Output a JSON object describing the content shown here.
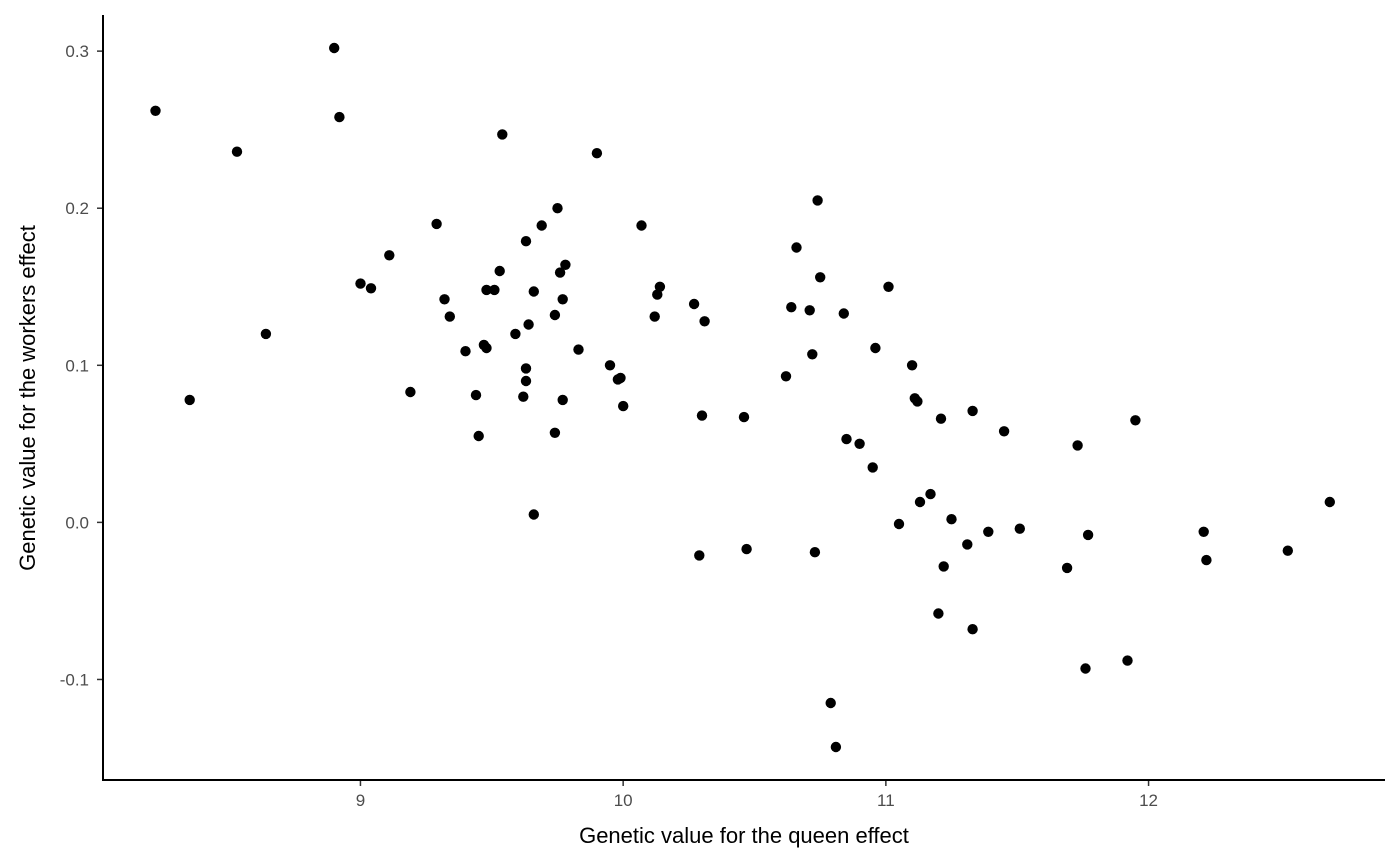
{
  "chart_data": {
    "type": "scatter",
    "title": "",
    "xlabel": "Genetic value for the queen effect",
    "ylabel": "Genetic value for the workers effect",
    "xlim": [
      8.02,
      12.9
    ],
    "ylim": [
      -0.164,
      0.323
    ],
    "xticks": [
      9,
      10,
      11,
      12
    ],
    "xtick_labels": [
      "9",
      "10",
      "11",
      "12"
    ],
    "yticks": [
      -0.1,
      0.0,
      0.1,
      0.2,
      0.3
    ],
    "ytick_labels": [
      "-0.1",
      "0.0",
      "0.1",
      "0.2",
      "0.3"
    ],
    "grid": false,
    "legend": "none",
    "point_color": "#000000",
    "points": [
      {
        "x": 8.22,
        "y": 0.262
      },
      {
        "x": 8.35,
        "y": 0.078
      },
      {
        "x": 8.53,
        "y": 0.236
      },
      {
        "x": 8.64,
        "y": 0.12
      },
      {
        "x": 8.9,
        "y": 0.302
      },
      {
        "x": 8.92,
        "y": 0.258
      },
      {
        "x": 9.0,
        "y": 0.152
      },
      {
        "x": 9.04,
        "y": 0.149
      },
      {
        "x": 9.11,
        "y": 0.17
      },
      {
        "x": 9.19,
        "y": 0.083
      },
      {
        "x": 9.29,
        "y": 0.19
      },
      {
        "x": 9.32,
        "y": 0.142
      },
      {
        "x": 9.34,
        "y": 0.131
      },
      {
        "x": 9.4,
        "y": 0.109
      },
      {
        "x": 9.44,
        "y": 0.081
      },
      {
        "x": 9.45,
        "y": 0.055
      },
      {
        "x": 9.47,
        "y": 0.113
      },
      {
        "x": 9.48,
        "y": 0.111
      },
      {
        "x": 9.48,
        "y": 0.148
      },
      {
        "x": 9.51,
        "y": 0.148
      },
      {
        "x": 9.53,
        "y": 0.16
      },
      {
        "x": 9.54,
        "y": 0.247
      },
      {
        "x": 9.59,
        "y": 0.12
      },
      {
        "x": 9.62,
        "y": 0.08
      },
      {
        "x": 9.63,
        "y": 0.179
      },
      {
        "x": 9.63,
        "y": 0.098
      },
      {
        "x": 9.63,
        "y": 0.09
      },
      {
        "x": 9.64,
        "y": 0.126
      },
      {
        "x": 9.66,
        "y": 0.147
      },
      {
        "x": 9.66,
        "y": 0.005
      },
      {
        "x": 9.69,
        "y": 0.189
      },
      {
        "x": 9.74,
        "y": 0.132
      },
      {
        "x": 9.74,
        "y": 0.057
      },
      {
        "x": 9.75,
        "y": 0.2
      },
      {
        "x": 9.76,
        "y": 0.159
      },
      {
        "x": 9.77,
        "y": 0.142
      },
      {
        "x": 9.77,
        "y": 0.078
      },
      {
        "x": 9.78,
        "y": 0.164
      },
      {
        "x": 9.83,
        "y": 0.11
      },
      {
        "x": 9.9,
        "y": 0.235
      },
      {
        "x": 9.95,
        "y": 0.1
      },
      {
        "x": 9.98,
        "y": 0.091
      },
      {
        "x": 9.99,
        "y": 0.092
      },
      {
        "x": 10.0,
        "y": 0.074
      },
      {
        "x": 10.07,
        "y": 0.189
      },
      {
        "x": 10.12,
        "y": 0.131
      },
      {
        "x": 10.13,
        "y": 0.145
      },
      {
        "x": 10.14,
        "y": 0.15
      },
      {
        "x": 10.27,
        "y": 0.139
      },
      {
        "x": 10.29,
        "y": -0.021
      },
      {
        "x": 10.3,
        "y": 0.068
      },
      {
        "x": 10.31,
        "y": 0.128
      },
      {
        "x": 10.46,
        "y": 0.067
      },
      {
        "x": 10.47,
        "y": -0.017
      },
      {
        "x": 10.62,
        "y": 0.093
      },
      {
        "x": 10.64,
        "y": 0.137
      },
      {
        "x": 10.66,
        "y": 0.175
      },
      {
        "x": 10.71,
        "y": 0.135
      },
      {
        "x": 10.72,
        "y": 0.107
      },
      {
        "x": 10.73,
        "y": -0.019
      },
      {
        "x": 10.74,
        "y": 0.205
      },
      {
        "x": 10.75,
        "y": 0.156
      },
      {
        "x": 10.79,
        "y": -0.115
      },
      {
        "x": 10.81,
        "y": -0.143
      },
      {
        "x": 10.84,
        "y": 0.133
      },
      {
        "x": 10.85,
        "y": 0.053
      },
      {
        "x": 10.9,
        "y": 0.05
      },
      {
        "x": 10.95,
        "y": 0.035
      },
      {
        "x": 10.96,
        "y": 0.111
      },
      {
        "x": 11.01,
        "y": 0.15
      },
      {
        "x": 11.05,
        "y": -0.001
      },
      {
        "x": 11.1,
        "y": 0.1
      },
      {
        "x": 11.11,
        "y": 0.079
      },
      {
        "x": 11.12,
        "y": 0.077
      },
      {
        "x": 11.13,
        "y": 0.013
      },
      {
        "x": 11.17,
        "y": 0.018
      },
      {
        "x": 11.2,
        "y": -0.058
      },
      {
        "x": 11.21,
        "y": 0.066
      },
      {
        "x": 11.22,
        "y": -0.028
      },
      {
        "x": 11.25,
        "y": 0.002
      },
      {
        "x": 11.31,
        "y": -0.014
      },
      {
        "x": 11.33,
        "y": 0.071
      },
      {
        "x": 11.33,
        "y": -0.068
      },
      {
        "x": 11.39,
        "y": -0.006
      },
      {
        "x": 11.45,
        "y": 0.058
      },
      {
        "x": 11.51,
        "y": -0.004
      },
      {
        "x": 11.69,
        "y": -0.029
      },
      {
        "x": 11.73,
        "y": 0.049
      },
      {
        "x": 11.76,
        "y": -0.093
      },
      {
        "x": 11.77,
        "y": -0.008
      },
      {
        "x": 11.92,
        "y": -0.088
      },
      {
        "x": 11.95,
        "y": 0.065
      },
      {
        "x": 12.21,
        "y": -0.006
      },
      {
        "x": 12.22,
        "y": -0.024
      },
      {
        "x": 12.53,
        "y": -0.018
      },
      {
        "x": 12.69,
        "y": 0.013
      }
    ]
  }
}
